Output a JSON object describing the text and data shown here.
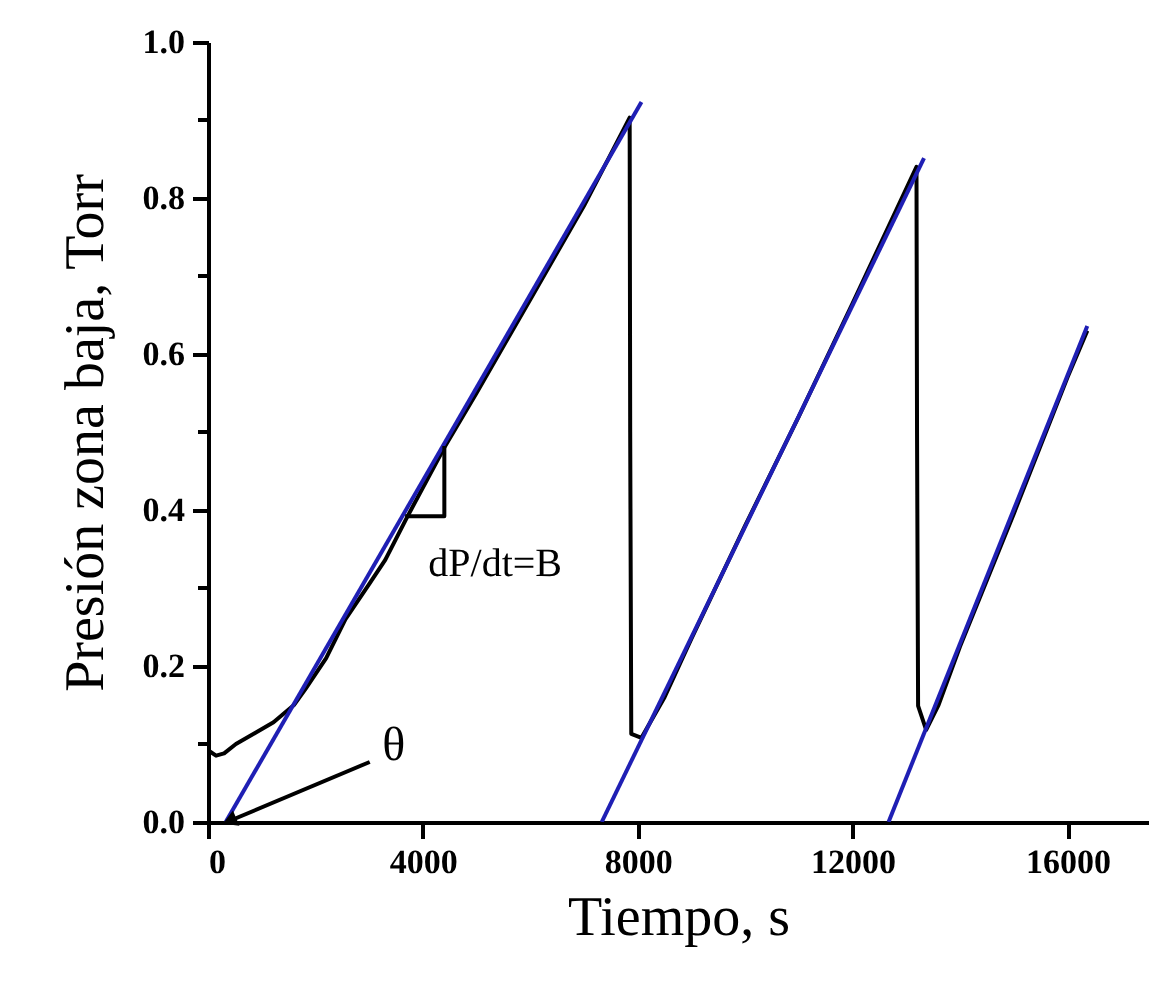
{
  "chart_data": {
    "type": "line",
    "xlabel": "Tiempo, s",
    "ylabel": "Presión zona baja, Torr",
    "xlim": [
      0,
      17500
    ],
    "xticks": [
      0,
      4000,
      8000,
      12000,
      16000
    ],
    "ylim": [
      0,
      1.0
    ],
    "yticks": [
      {
        "value": 0.0,
        "label": "0.0"
      },
      {
        "value": 0.1,
        "label": null
      },
      {
        "value": 0.2,
        "label": "0.2"
      },
      {
        "value": 0.3,
        "label": null
      },
      {
        "value": 0.4,
        "label": "0.4"
      },
      {
        "value": 0.5,
        "label": null
      },
      {
        "value": 0.6,
        "label": "0.6"
      },
      {
        "value": 0.7,
        "label": null
      },
      {
        "value": 0.8,
        "label": "0.8"
      },
      {
        "value": 0.9,
        "label": null
      },
      {
        "value": 1.0,
        "label": "1.0"
      }
    ],
    "grid": false,
    "marker": "none",
    "line_style": "solid",
    "series": [
      {
        "color": "#000000",
        "x": [
          0,
          150,
          300,
          520,
          900,
          1220,
          1600,
          1810,
          2200,
          2560,
          3000,
          3300,
          3700,
          4400,
          5000,
          6000,
          7000,
          7850,
          7860,
          7880,
          8070,
          8500,
          9000,
          10000,
          11000,
          12000,
          13190,
          13200,
          13220,
          13370,
          13600,
          14000,
          15000,
          16000,
          16370
        ],
        "values": [
          0.092,
          0.085,
          0.088,
          0.1,
          0.115,
          0.128,
          0.15,
          0.17,
          0.21,
          0.26,
          0.305,
          0.336,
          0.39,
          0.48,
          0.55,
          0.67,
          0.79,
          0.903,
          0.5,
          0.113,
          0.108,
          0.16,
          0.235,
          0.38,
          0.52,
          0.665,
          0.84,
          0.5,
          0.149,
          0.118,
          0.15,
          0.225,
          0.395,
          0.57,
          0.63
        ]
      },
      {
        "color": "#1f1fb4",
        "x": [
          330,
          8070
        ],
        "values": [
          0.0,
          0.923
        ]
      },
      {
        "color": "#1f1fb4",
        "x": [
          7330,
          13330
        ],
        "values": [
          0.0,
          0.851
        ]
      },
      {
        "color": "#1f1fb4",
        "x": [
          12670,
          16370
        ],
        "values": [
          0.0,
          0.636
        ]
      },
      {
        "color": "#000000",
        "x": [
          3670,
          4400,
          4400
        ],
        "values": [
          0.392,
          0.392,
          0.482
        ]
      }
    ],
    "annotations": [
      {
        "text": "dP/dt=B",
        "x": 4400,
        "y": 0.392
      },
      {
        "text": "θ",
        "x": 330,
        "y": 0.0
      }
    ]
  }
}
